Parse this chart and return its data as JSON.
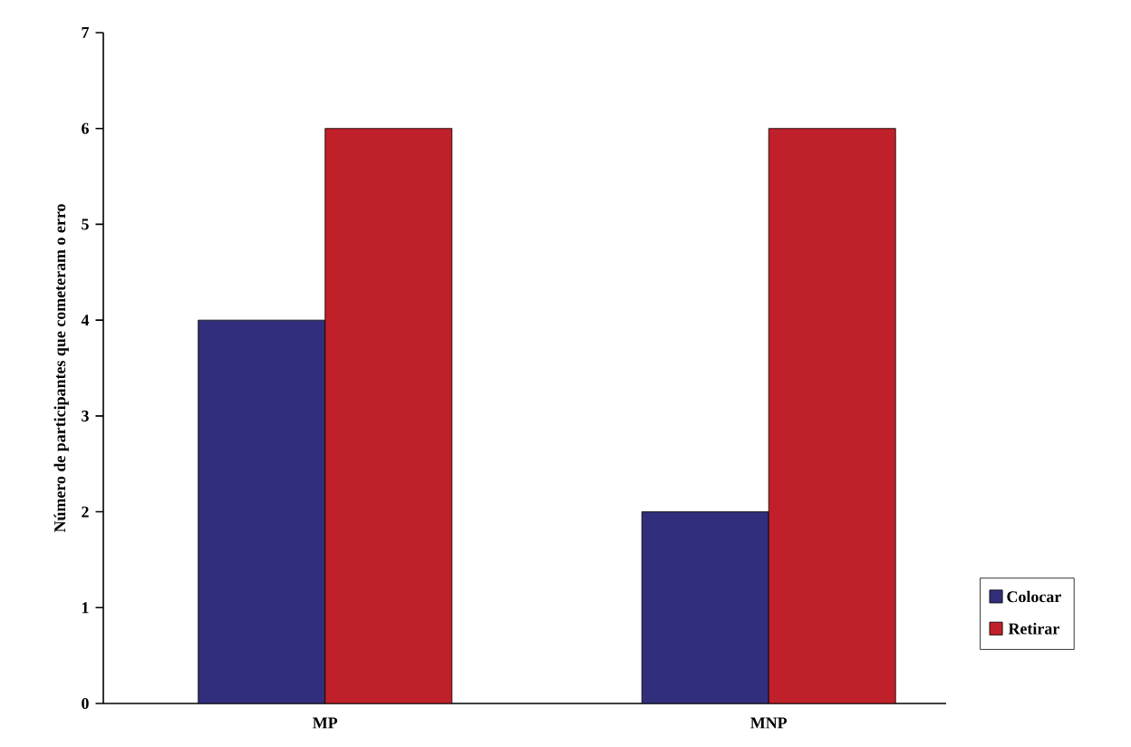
{
  "chart_data": {
    "type": "bar",
    "ylabel": "Número de participantes que cometeram o erro",
    "categories": [
      "MP",
      "MNP"
    ],
    "series": [
      {
        "name": "Colocar",
        "color": "#312f7b",
        "values": [
          4,
          2
        ]
      },
      {
        "name": "Retirar",
        "color": "#c0202a",
        "values": [
          6,
          6
        ]
      }
    ],
    "ylim": [
      0,
      7
    ],
    "yticks": [
      0,
      1,
      2,
      3,
      4,
      5,
      6,
      7
    ],
    "grid": false,
    "legend": "right"
  }
}
